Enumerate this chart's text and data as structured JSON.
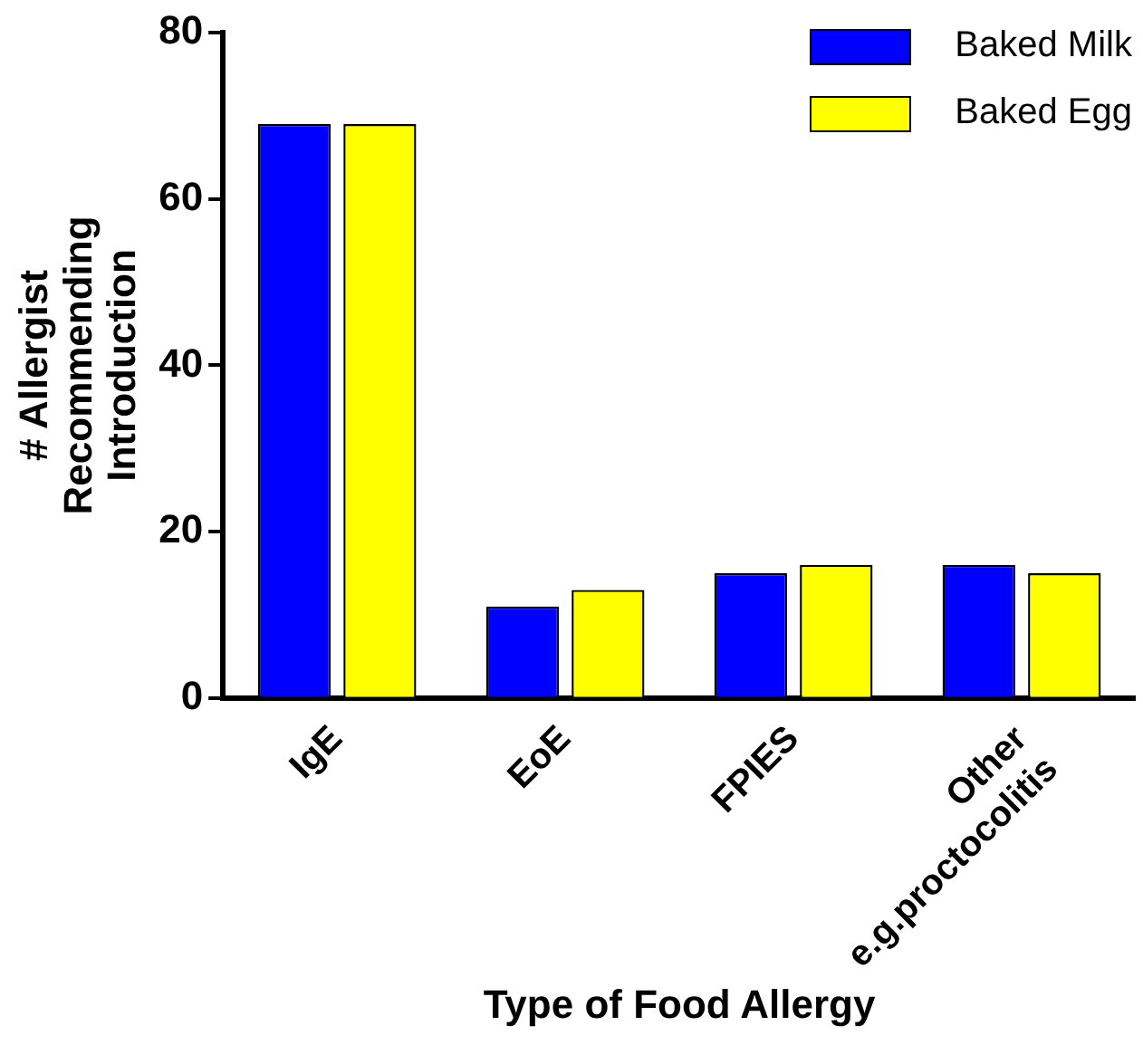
{
  "chart_data": {
    "type": "bar",
    "xlabel": "Type of Food Allergy",
    "ylabel": "# Allergist\nRecommending\nIntroduction",
    "categories": [
      "IgE",
      "EoE",
      "FPIES",
      "Other\ne.g.proctocolitis"
    ],
    "series": [
      {
        "name": "Baked Milk",
        "color": "#0000ff",
        "values": [
          69,
          11,
          15,
          16
        ]
      },
      {
        "name": "Baked Egg",
        "color": "#ffff00",
        "values": [
          69,
          13,
          16,
          15
        ]
      }
    ],
    "ylim": [
      0,
      80
    ],
    "yticks": [
      0,
      20,
      40,
      60,
      80
    ],
    "grid": false,
    "legend": "top right"
  }
}
